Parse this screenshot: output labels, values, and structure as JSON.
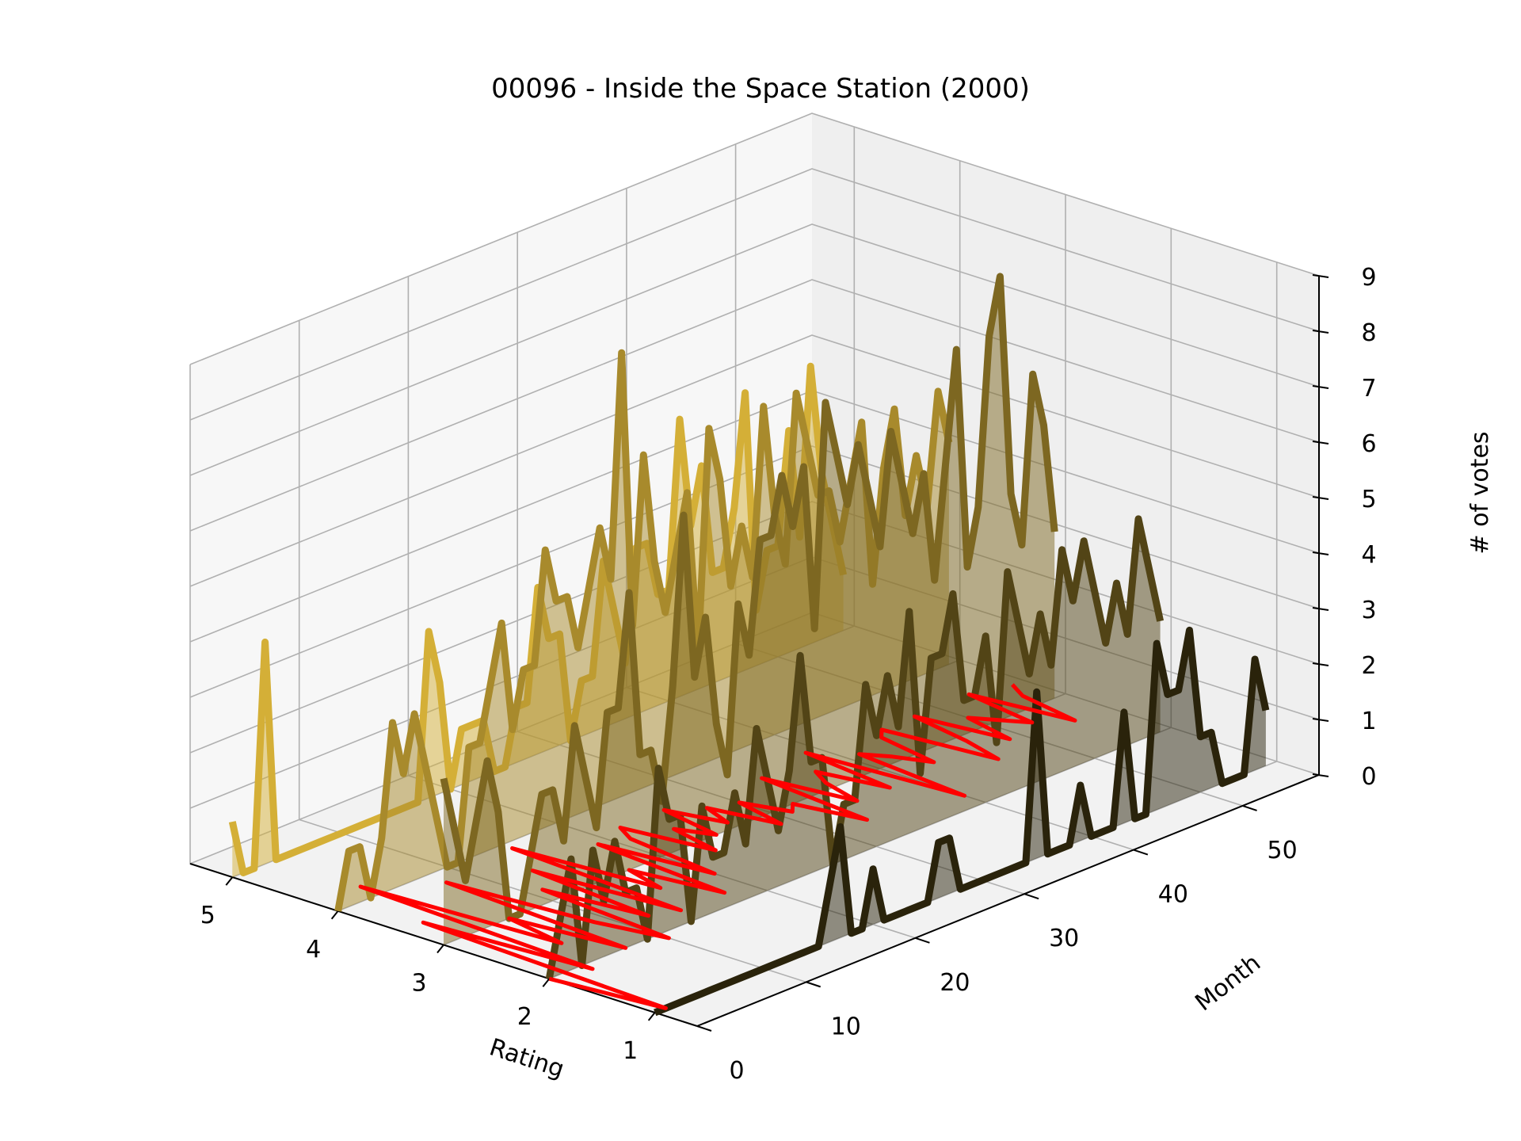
{
  "chart_data": {
    "type": "line",
    "title": "00096 - Inside the Space Station (2000)",
    "xlabel": "Rating",
    "ylabel": "Month",
    "zlabel": "# of votes",
    "x_ticks": [
      "5",
      "4",
      "3",
      "2",
      "1"
    ],
    "y_ticks": [
      "0",
      "10",
      "20",
      "30",
      "40",
      "50"
    ],
    "z_ticks": [
      "0",
      "1",
      "2",
      "3",
      "4",
      "5",
      "6",
      "7",
      "8",
      "9"
    ],
    "xlim": [
      0.6,
      5.4
    ],
    "ylim": [
      0,
      57
    ],
    "zlim": [
      0,
      9
    ],
    "grid": true,
    "colors": {
      "rating_5": "#d4af37",
      "rating_4": "#a88a2c",
      "rating_3": "#7d6721",
      "rating_2": "#524416",
      "rating_1": "#2a230b",
      "mean_line": "#ff0000"
    },
    "series": [
      {
        "name": "5",
        "rating": 5,
        "values": [
          1,
          0,
          0,
          4,
          0,
          0,
          0,
          0,
          0,
          0,
          0,
          0,
          0,
          0,
          0,
          0,
          0,
          0,
          3,
          2,
          0,
          1,
          1,
          1,
          0,
          0,
          1,
          1,
          3,
          2,
          2,
          0,
          1,
          1,
          3,
          2,
          1,
          3,
          3,
          2,
          2,
          5,
          3,
          4,
          2,
          2,
          3,
          5,
          1,
          2,
          2,
          4,
          2,
          5,
          3,
          2,
          1
        ]
      },
      {
        "name": "4",
        "rating": 4,
        "values": [
          0,
          1,
          1,
          0,
          1,
          3,
          2,
          3,
          2,
          1,
          0,
          0,
          2,
          2,
          3,
          4,
          2,
          3,
          3,
          5,
          4,
          4,
          3,
          4,
          5,
          4,
          8,
          3,
          6,
          4,
          3,
          4,
          5,
          2,
          6,
          5,
          3,
          4,
          3,
          6,
          4,
          3,
          6,
          5,
          4,
          4,
          3,
          4,
          5,
          2,
          4,
          5,
          3,
          4,
          3,
          5,
          4
        ]
      },
      {
        "name": "3",
        "rating": 3,
        "values": [
          3,
          2,
          1,
          2,
          3,
          2,
          0,
          0,
          1,
          2,
          2,
          1,
          3,
          2,
          1,
          3,
          3,
          5,
          2,
          2,
          1,
          3,
          6,
          3,
          4,
          2,
          1,
          4,
          3,
          5,
          5,
          6,
          5,
          6,
          3,
          7,
          6,
          5,
          6,
          5,
          4,
          6,
          5,
          4,
          5,
          3,
          5,
          7,
          3,
          4,
          7,
          8,
          4,
          3,
          6,
          5,
          3
        ]
      },
      {
        "name": "2",
        "rating": 2,
        "values": [
          0,
          1,
          2,
          0,
          2,
          1,
          2,
          1,
          1,
          0,
          3,
          2,
          2,
          0,
          2,
          1,
          1,
          2,
          1,
          3,
          2,
          1,
          2,
          4,
          2,
          2,
          0,
          1,
          1,
          3,
          2,
          3,
          2,
          4,
          1,
          3,
          3,
          4,
          2,
          2,
          3,
          1,
          4,
          3,
          2,
          3,
          2,
          4,
          3,
          4,
          3,
          2,
          3,
          2,
          4,
          3,
          2
        ]
      },
      {
        "name": "1",
        "rating": 1,
        "values": [
          0,
          0,
          0,
          0,
          0,
          0,
          0,
          0,
          0,
          0,
          0,
          0,
          0,
          0,
          0,
          0,
          1,
          2,
          0,
          0,
          1,
          0,
          0,
          0,
          0,
          0,
          1,
          1,
          0,
          0,
          0,
          0,
          0,
          0,
          0,
          3,
          0,
          0,
          0,
          1,
          0,
          0,
          0,
          2,
          0,
          0,
          3,
          2,
          2,
          3,
          1,
          1,
          0,
          0,
          0,
          2,
          1
        ]
      }
    ],
    "mean_rating": [
      2,
      1,
      3.4,
      1.9,
      4.2,
      2.4,
      3,
      2,
      3.8,
      2.5,
      1.9,
      3.2,
      2.3,
      3.5,
      2.2,
      3.9,
      2.6,
      3,
      2.2,
      3.5,
      2.5,
      3.4,
      3.6,
      2.8,
      3.3,
      3,
      3.6,
      3.1,
      3.4,
      2.8,
      3.3,
      2.9,
      3,
      2.4,
      3.5,
      2.7,
      3.1,
      3.3,
      2.7,
      3.6,
      2.2,
      3.3,
      3.1,
      2.8,
      3.4,
      3.5,
      2.5,
      2.9,
      3.5,
      2.7,
      3.2,
      3,
      2.8,
      3.5,
      2.6,
      3.2,
      3.4
    ]
  }
}
